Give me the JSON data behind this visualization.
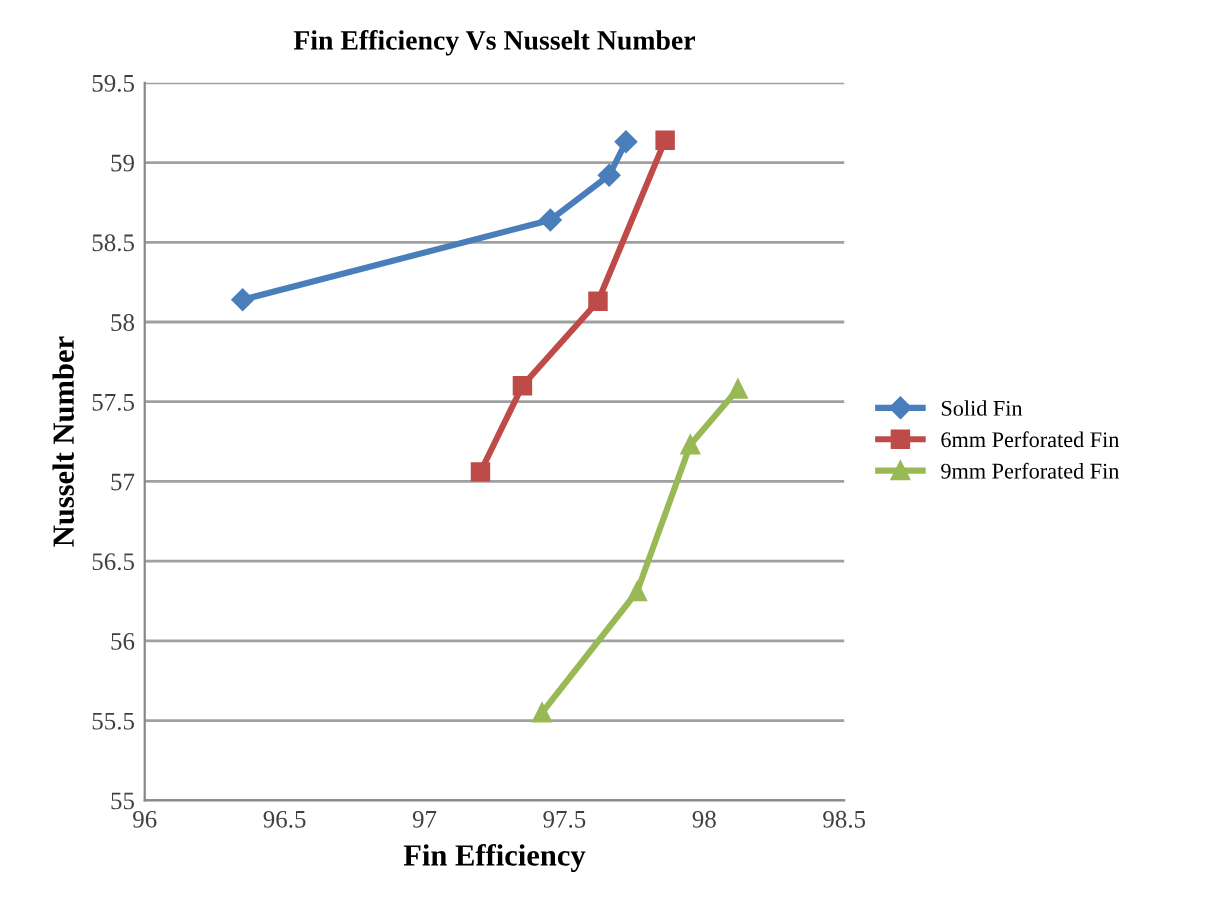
{
  "chart_data": {
    "type": "line",
    "title": "Fin Efficiency Vs Nusselt Number",
    "xlabel": "Fin Efficiency",
    "ylabel": "Nusselt Number",
    "xlim": [
      96,
      98.5
    ],
    "xticks": [
      96,
      96.5,
      97,
      97.5,
      98,
      98.5
    ],
    "ylim": [
      55,
      59.5
    ],
    "yticks": [
      55,
      55.5,
      56,
      56.5,
      57,
      57.5,
      58,
      58.5,
      59,
      59.5
    ],
    "grid": "y",
    "legend": "right",
    "line_style": "solid",
    "series": [
      {
        "name": "Solid Fin",
        "color": "#4a7ebb",
        "marker": "diamond",
        "x": [
          96.35,
          97.45,
          97.66,
          97.72
        ],
        "values": [
          58.14,
          58.64,
          58.92,
          59.13
        ]
      },
      {
        "name": "6mm Perforated Fin",
        "color": "#be4b48",
        "marker": "square",
        "x": [
          97.2,
          97.35,
          97.62,
          97.86
        ],
        "values": [
          57.06,
          57.6,
          58.13,
          59.14
        ]
      },
      {
        "name": "9mm Perforated Fin",
        "color": "#98b954",
        "marker": "triangle",
        "x": [
          97.42,
          97.76,
          97.95,
          98.12
        ],
        "values": [
          55.55,
          56.31,
          57.23,
          57.58
        ]
      }
    ]
  }
}
